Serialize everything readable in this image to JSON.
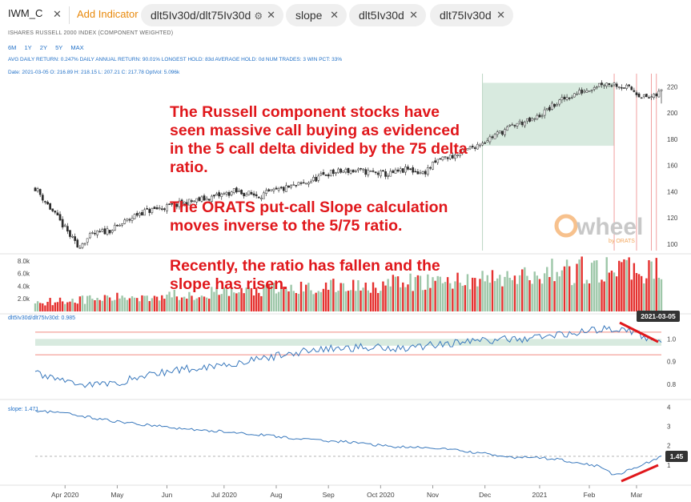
{
  "header": {
    "symbol": "IWM_C",
    "add_indicator_label": "Add Indicator",
    "pills": [
      "dlt5Iv30d/dlt75Iv30d",
      "slope",
      "dlt5Iv30d",
      "dlt75Iv30d"
    ],
    "close_glyph": "✕",
    "gear_glyph": "⚙"
  },
  "subtitle": "ISHARES RUSSELL 2000 INDEX (COMPONENT WEIGHTED)",
  "ranges": [
    "6M",
    "1Y",
    "2Y",
    "5Y",
    "MAX"
  ],
  "stats_line": "AVG DAILY RETURN: 0.247%  DAILY ANNUAL RETURN: 90.01%  LONGEST HOLD: 83d  AVERAGE HOLD: 0d  NUM TRADES: 3  WIN PCT: 33%",
  "ohlc_line": "Date: 2021-03-05 O: 216.89 H: 218.15 L: 207.21 C: 217.78 OptVol: 5.096k",
  "annotations": {
    "a1": [
      "The Russell component stocks have",
      "seen massive call buying as evidenced",
      "in the 5 call delta divided by the 75 delta",
      "ratio."
    ],
    "a2": [
      "The ORATS put-call Slope calculation",
      "moves inverse to the 5/75 ratio."
    ],
    "a3": [
      "Recently, the ratio has fallen and the",
      "slope has risen."
    ]
  },
  "watermark": {
    "logo": "wheel",
    "sub": "by ORATS"
  },
  "colors": {
    "up": "#6aa383",
    "down": "#e5312f",
    "upvol": "#9ec7a9",
    "band": "#d8eadf",
    "line": "#3a79bd",
    "red": "#e0171b"
  },
  "chart_data": [
    {
      "type": "candlestick",
      "title": "IWM_C",
      "x_labels": [
        "Apr 2020",
        "May",
        "Jun",
        "Jul 2020",
        "Aug",
        "Sep",
        "Oct 2020",
        "Nov",
        "Dec",
        "2021",
        "Feb",
        "Mar"
      ],
      "ylim": [
        95,
        230
      ],
      "yticks": [
        100,
        120,
        140,
        160,
        180,
        200,
        220
      ],
      "path_points": [
        [
          0,
          143
        ],
        [
          5,
          130
        ],
        [
          12,
          112
        ],
        [
          17,
          98
        ],
        [
          23,
          107
        ],
        [
          32,
          112
        ],
        [
          42,
          124
        ],
        [
          52,
          128
        ],
        [
          62,
          132
        ],
        [
          72,
          136
        ],
        [
          80,
          140
        ],
        [
          90,
          137
        ],
        [
          100,
          142
        ],
        [
          108,
          146
        ],
        [
          118,
          154
        ],
        [
          126,
          156
        ],
        [
          134,
          155
        ],
        [
          142,
          153
        ],
        [
          150,
          157
        ],
        [
          156,
          154
        ],
        [
          163,
          165
        ],
        [
          170,
          168
        ],
        [
          178,
          176
        ],
        [
          186,
          184
        ],
        [
          194,
          192
        ],
        [
          200,
          194
        ],
        [
          208,
          205
        ],
        [
          214,
          212
        ],
        [
          222,
          218
        ],
        [
          228,
          223
        ],
        [
          234,
          222
        ],
        [
          240,
          218
        ],
        [
          245,
          212
        ],
        [
          249,
          212
        ],
        [
          252,
          217
        ]
      ],
      "last": {
        "date": "2021-03-05",
        "open": 216.89,
        "high": 218.15,
        "low": 207.21,
        "close": 217.78
      }
    },
    {
      "type": "bar",
      "title": "OptVol",
      "yticks_labels": [
        "2.0k",
        "4.0k",
        "6.0k",
        "8.0k"
      ],
      "yticks": [
        2000,
        4000,
        6000,
        8000
      ],
      "ylim": [
        0,
        9000
      ],
      "last_value": 5096
    },
    {
      "type": "line",
      "title": "dlt5Iv30d/dlt75Iv30d",
      "last_value": 0.985,
      "ylim": [
        0.74,
        1.1
      ],
      "yticks": [
        0.8,
        0.9,
        1.0
      ],
      "band": [
        0.97,
        1.0
      ],
      "limits": [
        0.93,
        1.03
      ],
      "path_points": [
        [
          0,
          0.85
        ],
        [
          10,
          0.82
        ],
        [
          20,
          0.8
        ],
        [
          30,
          0.8
        ],
        [
          45,
          0.84
        ],
        [
          55,
          0.86
        ],
        [
          70,
          0.88
        ],
        [
          85,
          0.9
        ],
        [
          100,
          0.93
        ],
        [
          110,
          0.95
        ],
        [
          125,
          0.96
        ],
        [
          135,
          0.965
        ],
        [
          150,
          0.96
        ],
        [
          160,
          0.975
        ],
        [
          175,
          0.99
        ],
        [
          185,
          0.995
        ],
        [
          195,
          1.0
        ],
        [
          205,
          1.01
        ],
        [
          210,
          1.02
        ],
        [
          220,
          1.03
        ],
        [
          230,
          1.045
        ],
        [
          236,
          1.05
        ],
        [
          240,
          1.03
        ],
        [
          245,
          1.01
        ],
        [
          252,
          0.985
        ]
      ],
      "badge": "2021-03-05"
    },
    {
      "type": "line",
      "title": "slope",
      "last_value": 1.471,
      "badge_value": "1.45",
      "ylim": [
        0,
        4.3
      ],
      "yticks": [
        1,
        2,
        3,
        4
      ],
      "ref_line": 1.45,
      "path_points": [
        [
          0,
          3.8
        ],
        [
          10,
          3.7
        ],
        [
          20,
          3.5
        ],
        [
          35,
          3.2
        ],
        [
          50,
          3.0
        ],
        [
          65,
          2.8
        ],
        [
          80,
          2.7
        ],
        [
          95,
          2.5
        ],
        [
          110,
          2.3
        ],
        [
          125,
          2.2
        ],
        [
          140,
          2.0
        ],
        [
          150,
          1.9
        ],
        [
          160,
          1.9
        ],
        [
          170,
          1.75
        ],
        [
          180,
          1.6
        ],
        [
          190,
          1.4
        ],
        [
          200,
          1.4
        ],
        [
          210,
          1.3
        ],
        [
          220,
          1.1
        ],
        [
          228,
          0.9
        ],
        [
          232,
          0.55
        ],
        [
          236,
          0.6
        ],
        [
          242,
          0.9
        ],
        [
          248,
          1.2
        ],
        [
          252,
          1.471
        ]
      ]
    }
  ]
}
